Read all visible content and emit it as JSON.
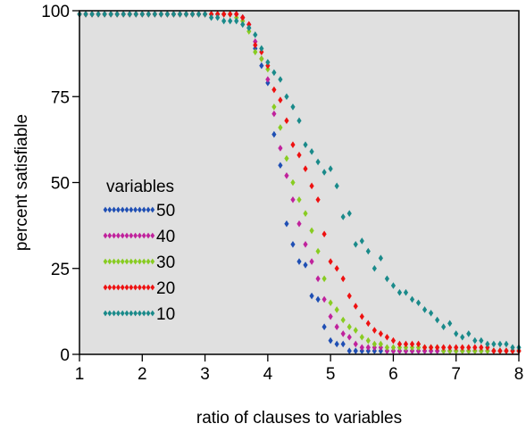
{
  "chart_data": {
    "type": "scatter",
    "xlabel": "ratio of clauses to variables",
    "ylabel": "percent satisfiable",
    "xlim": [
      1,
      8
    ],
    "ylim": [
      0,
      100
    ],
    "xticks": [
      "1",
      "2",
      "3",
      "4",
      "5",
      "6",
      "7",
      "8"
    ],
    "yticks": [
      "0",
      "25",
      "50",
      "75",
      "100"
    ],
    "grid": false,
    "background": "#e0e0e0",
    "legend": {
      "title": "variables",
      "position": "middle-left",
      "entries": [
        "50",
        "40",
        "30",
        "20",
        "10"
      ]
    },
    "series": [
      {
        "name": "50",
        "color": "#1f4fb4",
        "x": [
          1.0,
          1.1,
          1.2,
          1.3,
          1.4,
          1.5,
          1.6,
          1.7,
          1.8,
          1.9,
          2.0,
          2.1,
          2.2,
          2.3,
          2.4,
          2.5,
          2.6,
          2.7,
          2.8,
          2.9,
          3.0,
          3.1,
          3.2,
          3.3,
          3.4,
          3.5,
          3.6,
          3.7,
          3.8,
          3.9,
          4.0,
          4.1,
          4.2,
          4.3,
          4.4,
          4.5,
          4.6,
          4.7,
          4.8,
          4.9,
          5.0,
          5.1,
          5.2,
          5.3,
          5.4,
          5.5,
          5.6,
          5.7,
          5.8,
          5.9,
          6.0,
          6.1,
          6.2,
          6.3,
          6.4,
          6.5,
          6.6,
          6.7,
          6.8,
          6.9,
          7.0,
          7.1,
          7.2,
          7.3,
          7.4,
          7.5,
          7.6,
          7.7,
          7.8,
          7.9,
          8.0
        ],
        "y": [
          99,
          99,
          99,
          99,
          99,
          99,
          99,
          99,
          99,
          99,
          99,
          99,
          99,
          99,
          99,
          99,
          99,
          99,
          99,
          99,
          99,
          99,
          99,
          99,
          99,
          99,
          98,
          95,
          89,
          84,
          79,
          64,
          55,
          38,
          32,
          27,
          26,
          17,
          16,
          8,
          4,
          3,
          3,
          1,
          1,
          1,
          1,
          1,
          1,
          1,
          1,
          1,
          1,
          1,
          1,
          1,
          1,
          1,
          1,
          1,
          1,
          1,
          1,
          1,
          1,
          1,
          1,
          1,
          1,
          1,
          1
        ]
      },
      {
        "name": "40",
        "color": "#c0229c",
        "x": [
          1.0,
          1.1,
          1.2,
          1.3,
          1.4,
          1.5,
          1.6,
          1.7,
          1.8,
          1.9,
          2.0,
          2.1,
          2.2,
          2.3,
          2.4,
          2.5,
          2.6,
          2.7,
          2.8,
          2.9,
          3.0,
          3.1,
          3.2,
          3.3,
          3.4,
          3.5,
          3.6,
          3.7,
          3.8,
          3.9,
          4.0,
          4.1,
          4.2,
          4.3,
          4.4,
          4.5,
          4.6,
          4.7,
          4.8,
          4.9,
          5.0,
          5.1,
          5.2,
          5.3,
          5.4,
          5.5,
          5.6,
          5.7,
          5.8,
          5.9,
          6.0,
          6.1,
          6.2,
          6.3,
          6.4,
          6.5,
          6.6,
          6.7,
          6.8,
          6.9,
          7.0,
          7.1,
          7.2,
          7.3,
          7.4,
          7.5,
          7.6,
          7.7,
          7.8,
          7.9,
          8.0
        ],
        "y": [
          99,
          99,
          99,
          99,
          99,
          99,
          99,
          99,
          99,
          99,
          99,
          99,
          99,
          99,
          99,
          99,
          99,
          99,
          99,
          99,
          99,
          99,
          99,
          99,
          99,
          99,
          98,
          96,
          91,
          86,
          80,
          70,
          60,
          52,
          45,
          38,
          32,
          27,
          22,
          16,
          11,
          8,
          6,
          5,
          3,
          2,
          2,
          2,
          2,
          1,
          1,
          1,
          1,
          1,
          1,
          1,
          1,
          1,
          1,
          1,
          1,
          1,
          1,
          1,
          1,
          1,
          1,
          1,
          1,
          1,
          1
        ]
      },
      {
        "name": "30",
        "color": "#88cc22",
        "x": [
          1.0,
          1.1,
          1.2,
          1.3,
          1.4,
          1.5,
          1.6,
          1.7,
          1.8,
          1.9,
          2.0,
          2.1,
          2.2,
          2.3,
          2.4,
          2.5,
          2.6,
          2.7,
          2.8,
          2.9,
          3.0,
          3.1,
          3.2,
          3.3,
          3.4,
          3.5,
          3.6,
          3.7,
          3.8,
          3.9,
          4.0,
          4.1,
          4.2,
          4.3,
          4.4,
          4.5,
          4.6,
          4.7,
          4.8,
          4.9,
          5.0,
          5.1,
          5.2,
          5.3,
          5.4,
          5.5,
          5.6,
          5.7,
          5.8,
          5.9,
          6.0,
          6.1,
          6.2,
          6.3,
          6.4,
          6.5,
          6.6,
          6.7,
          6.8,
          6.9,
          7.0,
          7.1,
          7.2,
          7.3,
          7.4,
          7.5,
          7.6,
          7.7,
          7.8,
          7.9,
          8.0
        ],
        "y": [
          99,
          99,
          99,
          99,
          99,
          99,
          99,
          99,
          99,
          99,
          99,
          99,
          99,
          99,
          99,
          99,
          99,
          99,
          99,
          99,
          99,
          99,
          99,
          99,
          99,
          98,
          97,
          94,
          88,
          86,
          83,
          72,
          66,
          57,
          50,
          45,
          41,
          36,
          30,
          22,
          15,
          13,
          10,
          8,
          7,
          5,
          4,
          3,
          3,
          2,
          2,
          2,
          2,
          2,
          2,
          2,
          2,
          2,
          1,
          1,
          1,
          1,
          1,
          1,
          1,
          1,
          1,
          1,
          1,
          1,
          1
        ]
      },
      {
        "name": "20",
        "color": "#ee1111",
        "x": [
          1.0,
          1.1,
          1.2,
          1.3,
          1.4,
          1.5,
          1.6,
          1.7,
          1.8,
          1.9,
          2.0,
          2.1,
          2.2,
          2.3,
          2.4,
          2.5,
          2.6,
          2.7,
          2.8,
          2.9,
          3.0,
          3.1,
          3.2,
          3.3,
          3.4,
          3.5,
          3.6,
          3.7,
          3.8,
          3.9,
          4.0,
          4.1,
          4.2,
          4.3,
          4.4,
          4.5,
          4.6,
          4.7,
          4.8,
          4.9,
          5.0,
          5.1,
          5.2,
          5.3,
          5.4,
          5.5,
          5.6,
          5.7,
          5.8,
          5.9,
          6.0,
          6.1,
          6.2,
          6.3,
          6.4,
          6.5,
          6.6,
          6.7,
          6.8,
          6.9,
          7.0,
          7.1,
          7.2,
          7.3,
          7.4,
          7.5,
          7.6,
          7.7,
          7.8,
          7.9,
          8.0
        ],
        "y": [
          99,
          99,
          99,
          99,
          99,
          99,
          99,
          99,
          99,
          99,
          99,
          99,
          99,
          99,
          99,
          99,
          99,
          99,
          99,
          99,
          99,
          99,
          99,
          99,
          99,
          99,
          98,
          96,
          90,
          88,
          84,
          77,
          74,
          68,
          61,
          58,
          54,
          49,
          45,
          35,
          27,
          25,
          22,
          17,
          14,
          11,
          9,
          7,
          6,
          5,
          4,
          3,
          3,
          3,
          3,
          2,
          2,
          2,
          2,
          2,
          2,
          2,
          2,
          2,
          2,
          2,
          1,
          1,
          1,
          1,
          1
        ]
      },
      {
        "name": "10",
        "color": "#1a8a8a",
        "x": [
          1.0,
          1.1,
          1.2,
          1.3,
          1.4,
          1.5,
          1.6,
          1.7,
          1.8,
          1.9,
          2.0,
          2.1,
          2.2,
          2.3,
          2.4,
          2.5,
          2.6,
          2.7,
          2.8,
          2.9,
          3.0,
          3.1,
          3.2,
          3.3,
          3.4,
          3.5,
          3.6,
          3.7,
          3.8,
          3.9,
          4.0,
          4.1,
          4.2,
          4.3,
          4.4,
          4.5,
          4.6,
          4.7,
          4.8,
          4.9,
          5.0,
          5.1,
          5.2,
          5.3,
          5.4,
          5.5,
          5.6,
          5.7,
          5.8,
          5.9,
          6.0,
          6.1,
          6.2,
          6.3,
          6.4,
          6.5,
          6.6,
          6.7,
          6.8,
          6.9,
          7.0,
          7.1,
          7.2,
          7.3,
          7.4,
          7.5,
          7.6,
          7.7,
          7.8,
          7.9,
          8.0
        ],
        "y": [
          99,
          99,
          99,
          99,
          99,
          99,
          99,
          99,
          99,
          99,
          99,
          99,
          99,
          99,
          99,
          99,
          99,
          99,
          99,
          99,
          99,
          98,
          98,
          97,
          97,
          97,
          96,
          95,
          93,
          89,
          85,
          82,
          80,
          75,
          72,
          68,
          61,
          59,
          56,
          53,
          54,
          49,
          40,
          41,
          32,
          33,
          30,
          25,
          28,
          22,
          20,
          18,
          18,
          16,
          15,
          13,
          12,
          10,
          8,
          9,
          6,
          5,
          6,
          4,
          4,
          3,
          3,
          3,
          3,
          2,
          2
        ]
      }
    ]
  }
}
